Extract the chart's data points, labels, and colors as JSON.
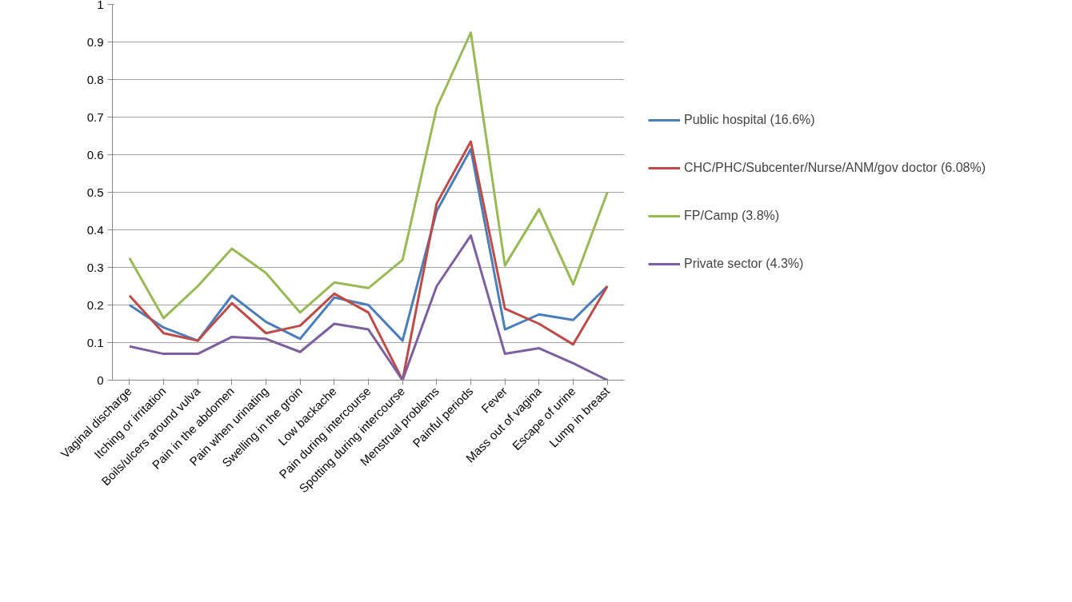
{
  "chart_data": {
    "type": "line",
    "categories": [
      "Vaginal discharge",
      "Itching or irritation",
      "Boils/ulcers around vulva",
      "Pain in the abdomen",
      "Pain when urinating",
      "Swelling in the groin",
      "Low backache",
      "Pain during intercourse",
      "Spotting during intercourse",
      "Menstrual problems",
      "Painful periods",
      "Fever",
      "Mass out of vagina",
      "Escape of urine",
      "Lump in breast"
    ],
    "series": [
      {
        "name": "Public hospital (16.6%)",
        "color": "#4a7ebb",
        "values": [
          0.2,
          0.14,
          0.105,
          0.225,
          0.155,
          0.11,
          0.22,
          0.2,
          0.105,
          0.45,
          0.615,
          0.135,
          0.175,
          0.16,
          0.25
        ]
      },
      {
        "name": "CHC/PHC/Subcenter/Nurse/ANM/gov doctor (6.08%)",
        "color": "#be4b48",
        "values": [
          0.225,
          0.125,
          0.105,
          0.205,
          0.125,
          0.145,
          0.23,
          0.18,
          0.0,
          0.47,
          0.635,
          0.19,
          0.15,
          0.095,
          0.25
        ]
      },
      {
        "name": "FP/Camp (3.8%)",
        "color": "#98b954",
        "values": [
          0.325,
          0.165,
          0.25,
          0.35,
          0.285,
          0.18,
          0.26,
          0.245,
          0.32,
          0.725,
          0.925,
          0.305,
          0.455,
          0.255,
          0.5
        ]
      },
      {
        "name": "Private sector (4.3%)",
        "color": "#7d5fa0",
        "values": [
          0.09,
          0.07,
          0.07,
          0.115,
          0.11,
          0.075,
          0.15,
          0.135,
          0.0,
          0.25,
          0.385,
          0.07,
          0.085,
          0.045,
          0.0
        ]
      }
    ],
    "ylim": [
      0,
      1
    ],
    "yticks": [
      0,
      0.1,
      0.2,
      0.3,
      0.4,
      0.5,
      0.6,
      0.7,
      0.8,
      0.9,
      1
    ],
    "grid": "y",
    "legend": "right",
    "marker": "none",
    "line_style": "solid"
  }
}
